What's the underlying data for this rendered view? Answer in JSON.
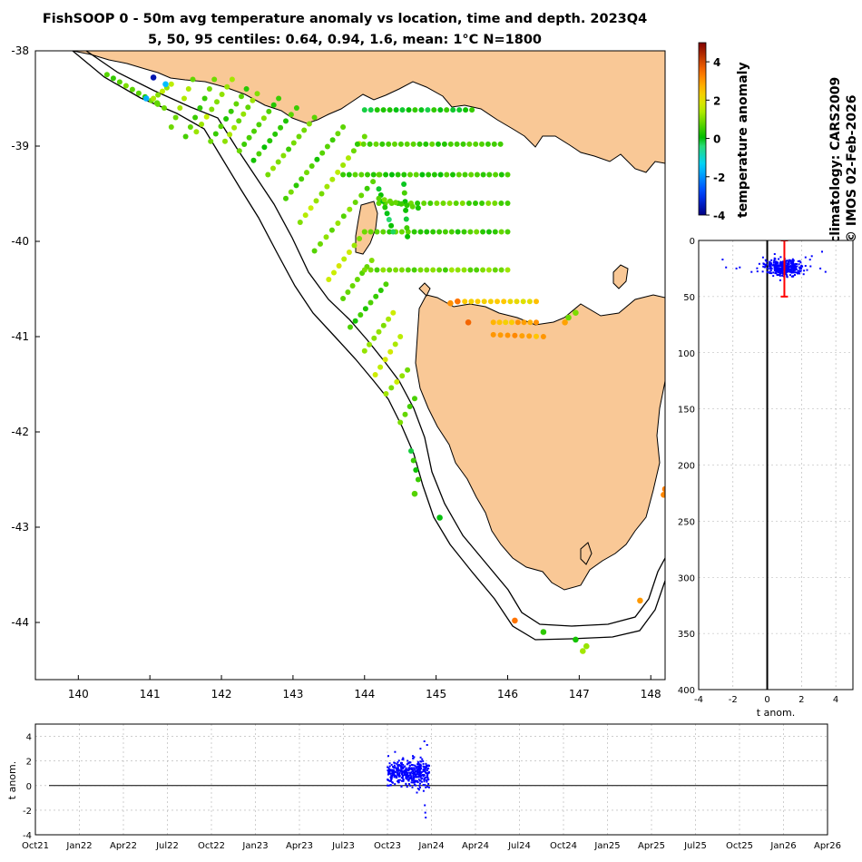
{
  "title_line1": "FishSOOP 0 - 50m avg temperature anomaly vs location, time and depth. 2023Q4",
  "title_line2": "5, 50, 95 centiles: 0.64, 0.94, 1.6, mean: 1°C N=1800",
  "side_label1": "climatology: CARS2009",
  "side_label2": "© IMOS 02-Feb-2026",
  "colors": {
    "land": "#f9c896",
    "coast": "#000000",
    "scatter": "#0000ff",
    "errbar": "#ff0000",
    "grid": "#b0b0b0"
  },
  "chart_data": [
    {
      "type": "scatter",
      "name": "map",
      "title": "FishSOOP 0 - 50m avg temperature anomaly vs location, time and depth. 2023Q4",
      "xlabel": "",
      "ylabel": "",
      "xlim": [
        139.4,
        148.2
      ],
      "ylim": [
        -44.6,
        -38.0
      ],
      "xticks": [
        "140",
        "141",
        "142",
        "143",
        "144",
        "145",
        "146",
        "147",
        "148"
      ],
      "yticks": [
        "-38",
        "-39",
        "-40",
        "-41",
        "-42",
        "-43",
        "-44"
      ],
      "colorbar": {
        "label": "temperature anomaly",
        "range": [
          -4,
          5
        ],
        "ticks": [
          "4",
          "2",
          "0",
          "-2",
          "-4"
        ]
      },
      "transects": [
        {
          "from": [
            140.4,
            -38.25
          ],
          "to": [
            141.2,
            -38.6
          ],
          "n": 10,
          "value": 0.6
        },
        {
          "from": [
            141.3,
            -38.35
          ],
          "to": [
            141.05,
            -38.5
          ],
          "n": 5,
          "value": 1.3
        },
        {
          "from": [
            141.3,
            -38.8
          ],
          "to": [
            141.6,
            -38.3
          ],
          "n": 6,
          "value": 1.1
        },
        {
          "from": [
            141.5,
            -38.9
          ],
          "to": [
            141.9,
            -38.3
          ],
          "n": 7,
          "value": 0.6
        },
        {
          "from": [
            141.65,
            -38.85
          ],
          "to": [
            142.15,
            -38.3
          ],
          "n": 8,
          "value": 1.3
        },
        {
          "from": [
            141.85,
            -38.95
          ],
          "to": [
            142.35,
            -38.4
          ],
          "n": 8,
          "value": 0.5
        },
        {
          "from": [
            142.05,
            -38.95
          ],
          "to": [
            142.5,
            -38.45
          ],
          "n": 8,
          "value": 1.1
        },
        {
          "from": [
            142.25,
            -39.05
          ],
          "to": [
            142.8,
            -38.5
          ],
          "n": 9,
          "value": 0.7
        },
        {
          "from": [
            142.45,
            -39.15
          ],
          "to": [
            143.05,
            -38.6
          ],
          "n": 9,
          "value": 0.5
        },
        {
          "from": [
            142.65,
            -39.3
          ],
          "to": [
            143.3,
            -38.7
          ],
          "n": 10,
          "value": 0.9
        },
        {
          "from": [
            142.9,
            -39.55
          ],
          "to": [
            143.7,
            -38.8
          ],
          "n": 12,
          "value": 0.6
        },
        {
          "from": [
            143.1,
            -39.8
          ],
          "to": [
            144.0,
            -38.9
          ],
          "n": 13,
          "value": 1.2
        },
        {
          "from": [
            143.3,
            -40.1
          ],
          "to": [
            144.2,
            -39.3
          ],
          "n": 12,
          "value": 0.9
        },
        {
          "from": [
            143.5,
            -40.4
          ],
          "to": [
            144.0,
            -39.9
          ],
          "n": 8,
          "value": 1.4
        },
        {
          "from": [
            143.7,
            -40.6
          ],
          "to": [
            144.1,
            -40.2
          ],
          "n": 7,
          "value": 0.7
        },
        {
          "from": [
            143.8,
            -40.9
          ],
          "to": [
            144.3,
            -40.45
          ],
          "n": 8,
          "value": 0.5
        },
        {
          "from": [
            144.0,
            -41.15
          ],
          "to": [
            144.4,
            -40.75
          ],
          "n": 7,
          "value": 1.3
        },
        {
          "from": [
            144.15,
            -41.4
          ],
          "to": [
            144.5,
            -41.0
          ],
          "n": 6,
          "value": 1.5
        },
        {
          "from": [
            144.3,
            -41.6
          ],
          "to": [
            144.6,
            -41.35
          ],
          "n": 5,
          "value": 1.3
        },
        {
          "from": [
            144.5,
            -41.9
          ],
          "to": [
            144.7,
            -41.65
          ],
          "n": 4,
          "value": 0.9
        },
        {
          "from": [
            144.0,
            -38.62
          ],
          "to": [
            145.5,
            -38.62
          ],
          "n": 18,
          "value": 0.1
        },
        {
          "from": [
            143.9,
            -38.98
          ],
          "to": [
            145.9,
            -38.98
          ],
          "n": 24,
          "value": 0.6
        },
        {
          "from": [
            143.7,
            -39.3
          ],
          "to": [
            146.0,
            -39.3
          ],
          "n": 28,
          "value": 0.4
        },
        {
          "from": [
            144.2,
            -39.6
          ],
          "to": [
            146.0,
            -39.6
          ],
          "n": 21,
          "value": 0.7
        },
        {
          "from": [
            144.0,
            -39.9
          ],
          "to": [
            146.0,
            -39.9
          ],
          "n": 24,
          "value": 0.6
        },
        {
          "from": [
            144.0,
            -40.3
          ],
          "to": [
            146.0,
            -40.3
          ],
          "n": 24,
          "value": 0.9
        },
        {
          "from": [
            145.4,
            -40.63
          ],
          "to": [
            146.4,
            -40.63
          ],
          "n": 12,
          "value": 2.3
        },
        {
          "from": [
            145.8,
            -40.85
          ],
          "to": [
            146.4,
            -40.85
          ],
          "n": 8,
          "value": 2.7
        },
        {
          "from": [
            145.8,
            -40.98
          ],
          "to": [
            146.5,
            -41.0
          ],
          "n": 8,
          "value": 2.8
        },
        {
          "from": [
            144.2,
            -39.45
          ],
          "to": [
            144.4,
            -39.9
          ],
          "n": 8,
          "value": 0.0
        },
        {
          "from": [
            144.55,
            -39.4
          ],
          "to": [
            144.6,
            -39.95
          ],
          "n": 7,
          "value": 0.2
        },
        {
          "from": [
            144.2,
            -39.55
          ],
          "to": [
            144.75,
            -39.65
          ],
          "n": 8,
          "value": 0.6
        },
        {
          "from": [
            144.65,
            -42.2
          ],
          "to": [
            144.75,
            -42.5
          ],
          "n": 4,
          "value": 0.2
        }
      ],
      "points": [
        {
          "lon": 141.05,
          "lat": -38.28,
          "value": -3.6
        },
        {
          "lon": 140.95,
          "lat": -38.5,
          "value": -1.7
        },
        {
          "lon": 141.22,
          "lat": -38.35,
          "value": -1.6
        },
        {
          "lon": 141.1,
          "lat": -38.55,
          "value": 0.8
        },
        {
          "lon": 146.1,
          "lat": -43.98,
          "value": 3.4
        },
        {
          "lon": 146.5,
          "lat": -44.1,
          "value": 0.4
        },
        {
          "lon": 146.95,
          "lat": -44.18,
          "value": 0.2
        },
        {
          "lon": 147.1,
          "lat": -44.25,
          "value": 1.2
        },
        {
          "lon": 147.05,
          "lat": -44.3,
          "value": 1.3
        },
        {
          "lon": 147.85,
          "lat": -43.77,
          "value": 3.0
        },
        {
          "lon": 148.2,
          "lat": -42.6,
          "value": 3.3
        },
        {
          "lon": 148.18,
          "lat": -42.66,
          "value": 3.2
        },
        {
          "lon": 145.3,
          "lat": -40.63,
          "value": 3.4
        },
        {
          "lon": 145.2,
          "lat": -40.65,
          "value": 3.1
        },
        {
          "lon": 145.45,
          "lat": -40.85,
          "value": 3.6
        },
        {
          "lon": 144.7,
          "lat": -42.65,
          "value": 0.7
        },
        {
          "lon": 145.05,
          "lat": -42.9,
          "value": 0.0
        },
        {
          "lon": 146.85,
          "lat": -40.8,
          "value": 0.9
        },
        {
          "lon": 146.95,
          "lat": -40.75,
          "value": 1.0
        },
        {
          "lon": 146.8,
          "lat": -40.85,
          "value": 2.9
        }
      ]
    },
    {
      "type": "scatter",
      "name": "depth-profile",
      "xlabel": "t anom.",
      "ylabel": "",
      "xlim": [
        -4,
        5
      ],
      "ylim": [
        400,
        0
      ],
      "xticks": [
        "-4",
        "-2",
        "0",
        "2",
        "4"
      ],
      "yticks": [
        "0",
        "50",
        "100",
        "150",
        "200",
        "250",
        "300",
        "350",
        "400"
      ],
      "errorbar": {
        "x": 1.0,
        "ymin": 0,
        "ymax": 50
      },
      "cluster": {
        "x_mean": 1.0,
        "x_sd": 0.55,
        "y_mean": 24,
        "y_sd": 3.5,
        "n": 400
      },
      "points": [
        {
          "x": -2.6,
          "y": 17
        },
        {
          "x": -2.4,
          "y": 24
        },
        {
          "x": -1.8,
          "y": 25
        },
        {
          "x": -1.6,
          "y": 24
        },
        {
          "x": 2.6,
          "y": 14
        },
        {
          "x": 3.2,
          "y": 10
        },
        {
          "x": 3.4,
          "y": 28
        },
        {
          "x": 3.1,
          "y": 25
        }
      ]
    },
    {
      "type": "scatter",
      "name": "time-series",
      "xlabel": "",
      "ylabel": "t anom.",
      "xlim": [
        "Oct21",
        "Apr26"
      ],
      "ylim": [
        -4,
        5
      ],
      "xticks": [
        "Oct21",
        "Jan22",
        "Apr22",
        "Jul22",
        "Oct22",
        "Jan23",
        "Apr23",
        "Jul23",
        "Oct23",
        "Jan24",
        "Apr24",
        "Jul24",
        "Oct24",
        "Jan25",
        "Apr25",
        "Jul25",
        "Oct25",
        "Jan26",
        "Apr26"
      ],
      "yticks": [
        "4",
        "2",
        "0",
        "-2",
        "-4"
      ],
      "cluster": {
        "t_start_quarter": 8.0,
        "t_end_quarter": 8.95,
        "y_mean": 1.0,
        "y_sd": 0.55,
        "n": 400
      },
      "points": [
        {
          "t": 8.85,
          "y": -1.6
        },
        {
          "t": 8.86,
          "y": -2.2
        },
        {
          "t": 8.87,
          "y": -2.6
        },
        {
          "t": 8.84,
          "y": 3.6
        },
        {
          "t": 8.9,
          "y": 3.3
        },
        {
          "t": 8.75,
          "y": 3.0
        },
        {
          "t": 8.02,
          "y": 2.4
        }
      ]
    }
  ]
}
